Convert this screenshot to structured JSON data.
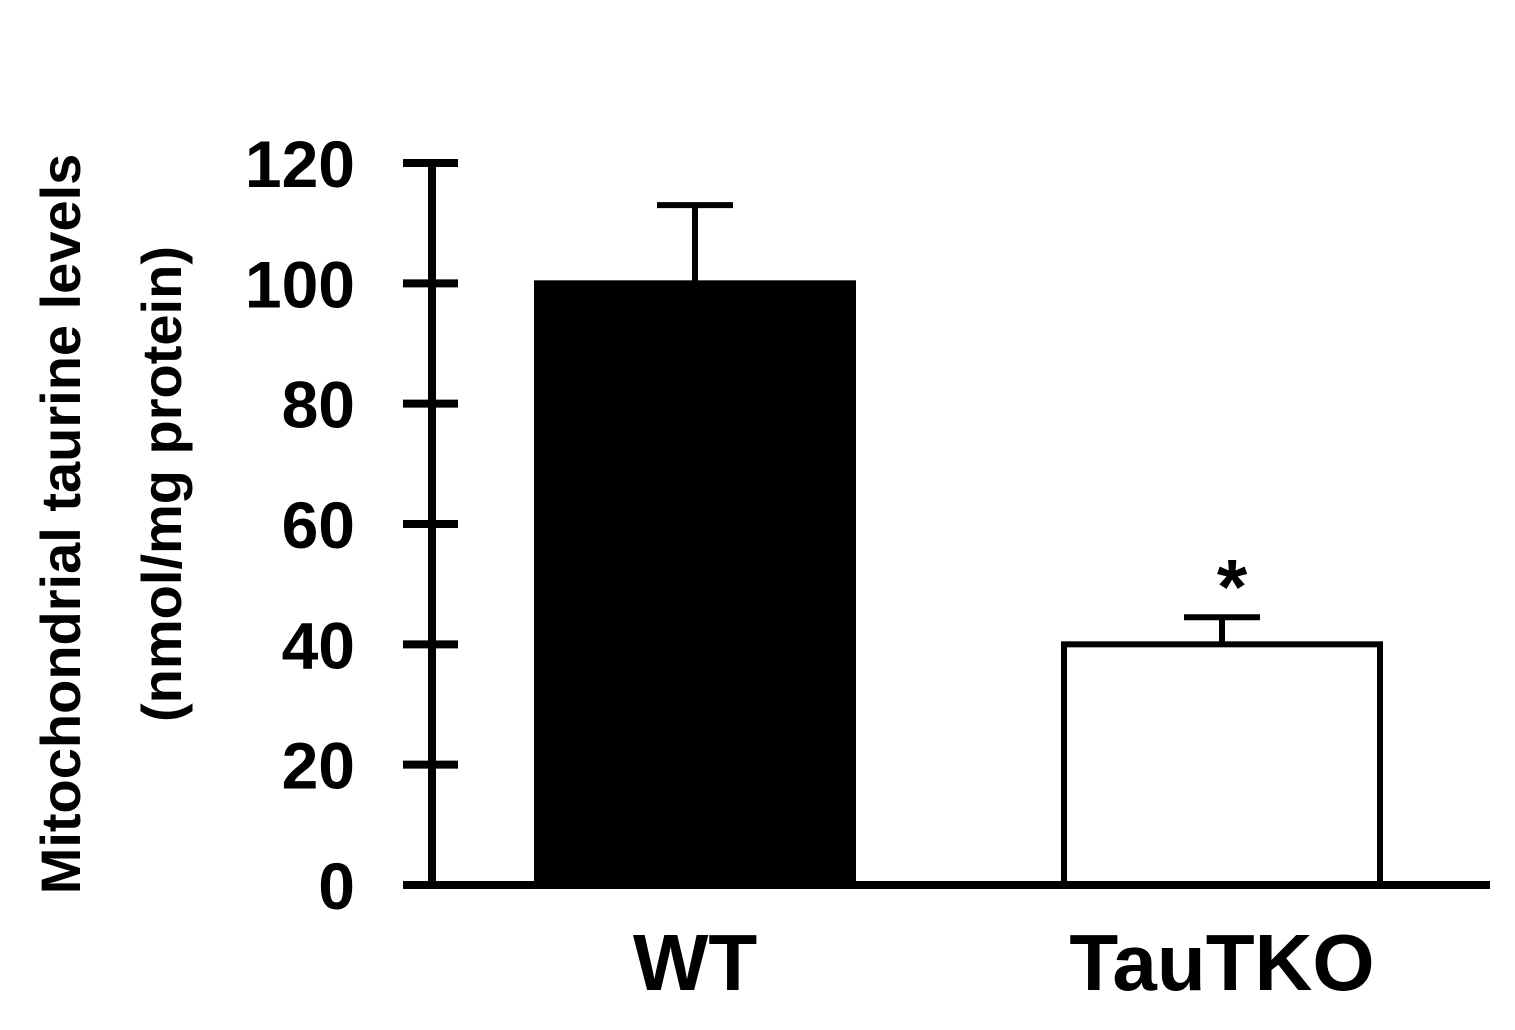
{
  "chart_data": {
    "type": "bar",
    "categories": [
      "WT",
      "TauTKO"
    ],
    "values": [
      100,
      40
    ],
    "error": [
      13,
      4.5
    ],
    "bar_colors": [
      "#000000",
      "#ffffff"
    ],
    "ylabel_line1": "Mitochondrial taurine levels",
    "ylabel_line2": "(nmol/mg protein)",
    "ylim": [
      0,
      120
    ],
    "yticks": [
      "0",
      "20",
      "40",
      "60",
      "80",
      "100",
      "120"
    ],
    "annotations": [
      "",
      "*"
    ],
    "grid": false,
    "legend": "none"
  }
}
